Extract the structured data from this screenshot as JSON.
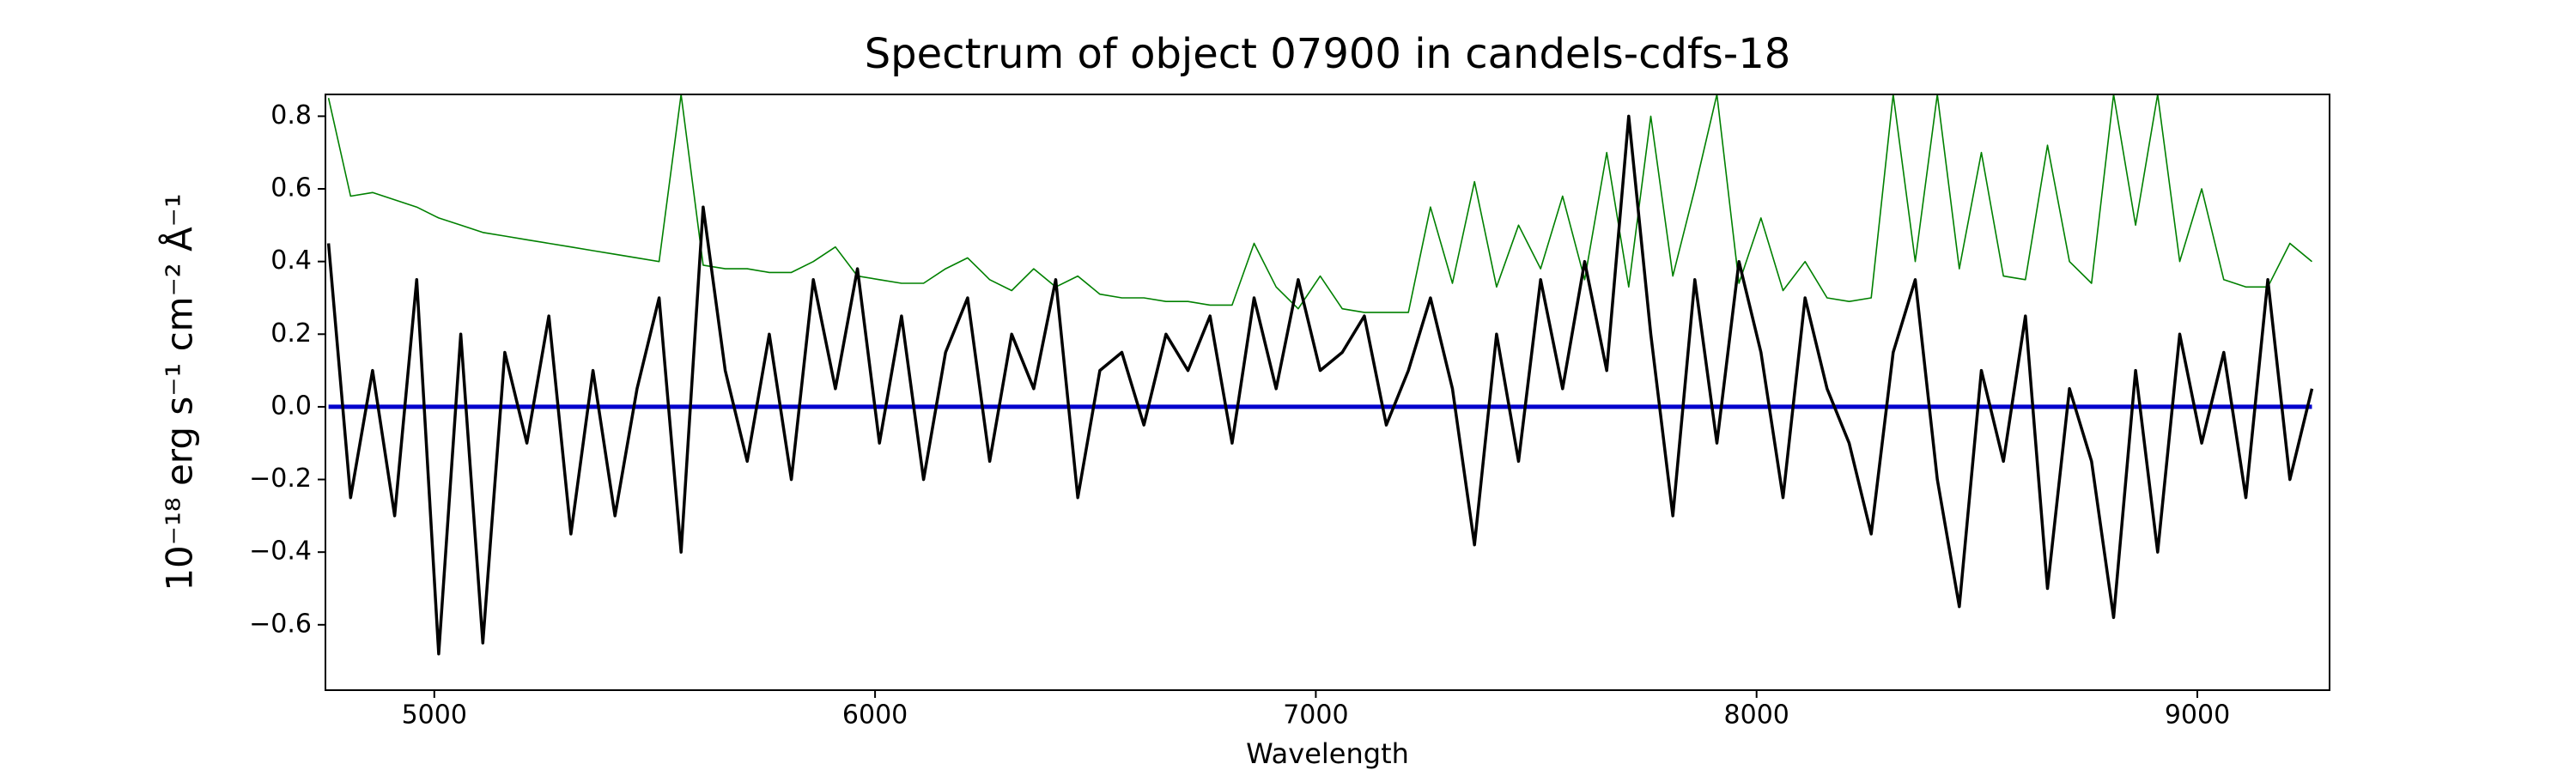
{
  "chart_data": {
    "type": "line",
    "title": "Spectrum of object 07900 in candels-cdfs-18",
    "xlabel": "Wavelength",
    "ylabel": "10⁻¹⁸ erg s⁻¹ cm⁻² Å⁻¹",
    "xlim": [
      4753,
      9300
    ],
    "ylim": [
      -0.78,
      0.86
    ],
    "xticks": [
      5000,
      6000,
      7000,
      8000,
      9000
    ],
    "yticks": [
      {
        "value": -0.6,
        "label": "−0.6"
      },
      {
        "value": -0.4,
        "label": "−0.4"
      },
      {
        "value": -0.2,
        "label": "−0.2"
      },
      {
        "value": 0,
        "label": "0.0"
      },
      0.2,
      0.4,
      0.6,
      0.8
    ],
    "grid": false,
    "x": [
      4760,
      4810,
      4860,
      4910,
      4960,
      5010,
      5060,
      5110,
      5160,
      5210,
      5260,
      5310,
      5360,
      5410,
      5460,
      5510,
      5560,
      5610,
      5660,
      5710,
      5760,
      5810,
      5860,
      5910,
      5960,
      6010,
      6060,
      6110,
      6160,
      6210,
      6260,
      6310,
      6360,
      6410,
      6460,
      6510,
      6560,
      6610,
      6660,
      6710,
      6760,
      6810,
      6860,
      6910,
      6960,
      7010,
      7060,
      7110,
      7160,
      7210,
      7260,
      7310,
      7360,
      7410,
      7460,
      7510,
      7560,
      7610,
      7660,
      7710,
      7760,
      7810,
      7860,
      7910,
      7960,
      8010,
      8060,
      8110,
      8160,
      8210,
      8260,
      8310,
      8360,
      8410,
      8460,
      8510,
      8560,
      8610,
      8660,
      8710,
      8760,
      8810,
      8860,
      8910,
      8960,
      9010,
      9060,
      9110,
      9160,
      9210,
      9260
    ],
    "series": [
      {
        "color": "#008000",
        "width": 1.6,
        "values": [
          0.85,
          0.58,
          0.59,
          0.57,
          0.55,
          0.52,
          0.5,
          0.48,
          0.47,
          0.46,
          0.45,
          0.44,
          0.43,
          0.42,
          0.41,
          0.4,
          0.86,
          0.39,
          0.38,
          0.38,
          0.37,
          0.37,
          0.4,
          0.44,
          0.36,
          0.35,
          0.34,
          0.34,
          0.38,
          0.41,
          0.35,
          0.32,
          0.38,
          0.33,
          0.36,
          0.31,
          0.3,
          0.3,
          0.29,
          0.29,
          0.28,
          0.28,
          0.45,
          0.33,
          0.27,
          0.36,
          0.27,
          0.26,
          0.26,
          0.26,
          0.55,
          0.34,
          0.62,
          0.33,
          0.5,
          0.38,
          0.58,
          0.35,
          0.7,
          0.33,
          0.8,
          0.36,
          0.6,
          0.86,
          0.34,
          0.52,
          0.32,
          0.4,
          0.3,
          0.29,
          0.3,
          0.86,
          0.4,
          0.86,
          0.38,
          0.7,
          0.36,
          0.35,
          0.72,
          0.4,
          0.34,
          0.86,
          0.5,
          0.86,
          0.4,
          0.6,
          0.35,
          0.33,
          0.33,
          0.45,
          0.4
        ]
      },
      {
        "color": "#0000cc",
        "width": 5,
        "values": [
          0,
          0,
          0,
          0,
          0,
          0,
          0,
          0,
          0,
          0,
          0,
          0,
          0,
          0,
          0,
          0,
          0,
          0,
          0,
          0,
          0,
          0,
          0,
          0,
          0,
          0,
          0,
          0,
          0,
          0,
          0,
          0,
          0,
          0,
          0,
          0,
          0,
          0,
          0,
          0,
          0,
          0,
          0,
          0,
          0,
          0,
          0,
          0,
          0,
          0,
          0,
          0,
          0,
          0,
          0,
          0,
          0,
          0,
          0,
          0,
          0,
          0,
          0,
          0,
          0,
          0,
          0,
          0,
          0,
          0,
          0,
          0,
          0,
          0,
          0,
          0,
          0,
          0,
          0,
          0,
          0,
          0,
          0,
          0,
          0,
          0,
          0,
          0,
          0,
          0,
          0
        ]
      },
      {
        "color": "#000000",
        "width": 3.5,
        "values": [
          0.45,
          -0.25,
          0.1,
          -0.3,
          0.35,
          -0.68,
          0.2,
          -0.65,
          0.15,
          -0.1,
          0.25,
          -0.35,
          0.1,
          -0.3,
          0.05,
          0.3,
          -0.4,
          0.55,
          0.1,
          -0.15,
          0.2,
          -0.2,
          0.35,
          0.05,
          0.38,
          -0.1,
          0.25,
          -0.2,
          0.15,
          0.3,
          -0.15,
          0.2,
          0.05,
          0.35,
          -0.25,
          0.1,
          0.15,
          -0.05,
          0.2,
          0.1,
          0.25,
          -0.1,
          0.3,
          0.05,
          0.35,
          0.1,
          0.15,
          0.25,
          -0.05,
          0.1,
          0.3,
          0.05,
          -0.38,
          0.2,
          -0.15,
          0.35,
          0.05,
          0.4,
          0.1,
          0.8,
          0.2,
          -0.3,
          0.35,
          -0.1,
          0.4,
          0.15,
          -0.25,
          0.3,
          0.05,
          -0.1,
          -0.35,
          0.15,
          0.35,
          -0.2,
          -0.55,
          0.1,
          -0.15,
          0.25,
          -0.5,
          0.05,
          -0.15,
          -0.58,
          0.1,
          -0.4,
          0.2,
          -0.1,
          0.15,
          -0.25,
          0.35,
          -0.2,
          0.05
        ]
      }
    ]
  }
}
